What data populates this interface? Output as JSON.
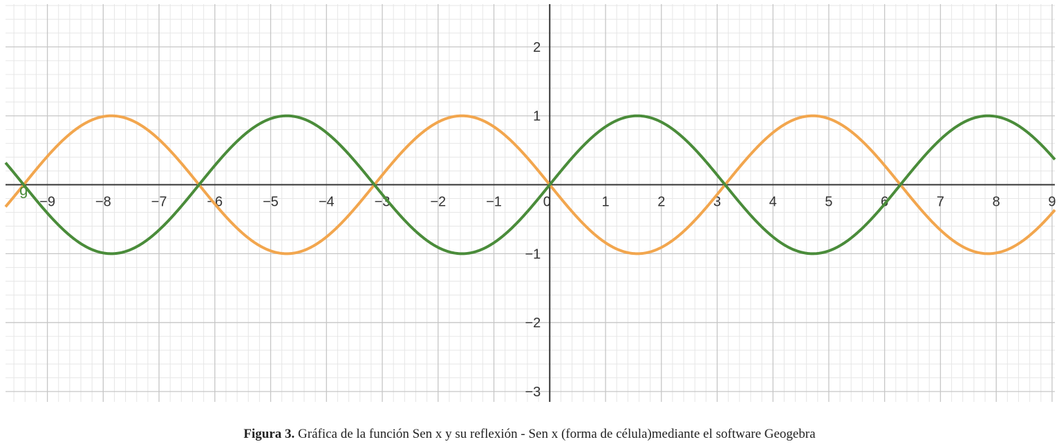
{
  "caption": {
    "label": "Figura 3.",
    "text": " Gráfica de la función Sen x y su reflexión - Sen x (forma de célula)mediante el software Geogebra"
  },
  "chart_data": {
    "type": "line",
    "title": "",
    "xlabel": "",
    "ylabel": "",
    "xlim": [
      -9.75,
      9.05
    ],
    "ylim": [
      -3.15,
      2.62
    ],
    "grid": true,
    "x_ticks": [
      "−9",
      "−8",
      "−7",
      "−6",
      "−5",
      "−4",
      "−3",
      "−2",
      "−1",
      "0",
      "1",
      "2",
      "3",
      "4",
      "5",
      "6",
      "7",
      "8",
      "9"
    ],
    "y_ticks": [
      "2",
      "1",
      "−1",
      "−2",
      "−3"
    ],
    "series": [
      {
        "name": "g",
        "function": "sin(x)",
        "color": "#4a8c3a",
        "x": [
          -9.42,
          -7.85,
          -6.28,
          -4.71,
          -3.14,
          -1.57,
          0,
          1.57,
          3.14,
          4.71,
          6.28,
          7.85
        ],
        "y": [
          0,
          -1,
          0,
          1,
          0,
          -1,
          0,
          1,
          0,
          -1,
          0,
          1
        ]
      },
      {
        "name": "",
        "function": "-sin(x)",
        "color": "#f2a64e",
        "x": [
          -9.42,
          -7.85,
          -6.28,
          -4.71,
          -3.14,
          -1.57,
          0,
          1.57,
          3.14,
          4.71,
          6.28,
          7.85
        ],
        "y": [
          0,
          1,
          0,
          -1,
          0,
          1,
          0,
          -1,
          0,
          1,
          0,
          -1
        ]
      }
    ],
    "annotations": [
      {
        "text": "g",
        "color": "#4a8c3a",
        "x": -9.5,
        "y": -0.15
      }
    ]
  },
  "colors": {
    "background": "#ffffff",
    "major_grid": "#c6c6c6",
    "minor_grid": "#e6e6e6",
    "axis": "#333333"
  }
}
